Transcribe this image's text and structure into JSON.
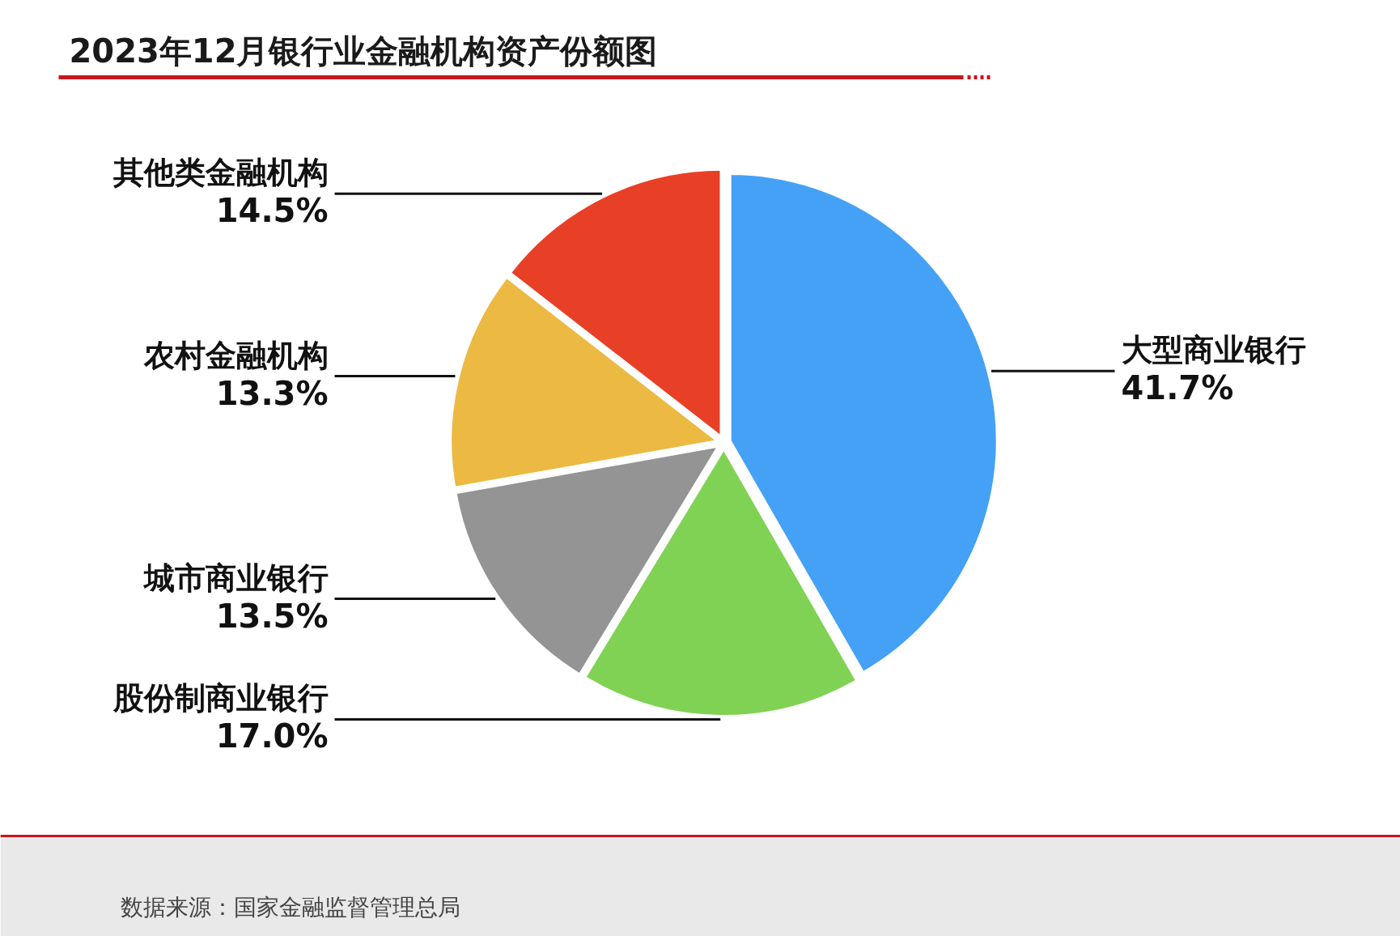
{
  "chart_data": {
    "type": "pie",
    "title": "2023年12月银行业金融机构资产份额图",
    "categories": [
      "大型商业银行",
      "股份制商业银行",
      "城市商业银行",
      "农村金融机构",
      "其他类金融机构"
    ],
    "values": [
      41.7,
      17.0,
      13.5,
      13.3,
      14.5
    ],
    "colors": [
      "#45a1f5",
      "#80d254",
      "#949494",
      "#ecb942",
      "#e84027"
    ],
    "value_labels": [
      "41.7%",
      "17.0%",
      "13.5%",
      "13.3%",
      "14.5%"
    ],
    "annotations": [
      "数据来源：国家金融监督管理总局"
    ]
  }
}
